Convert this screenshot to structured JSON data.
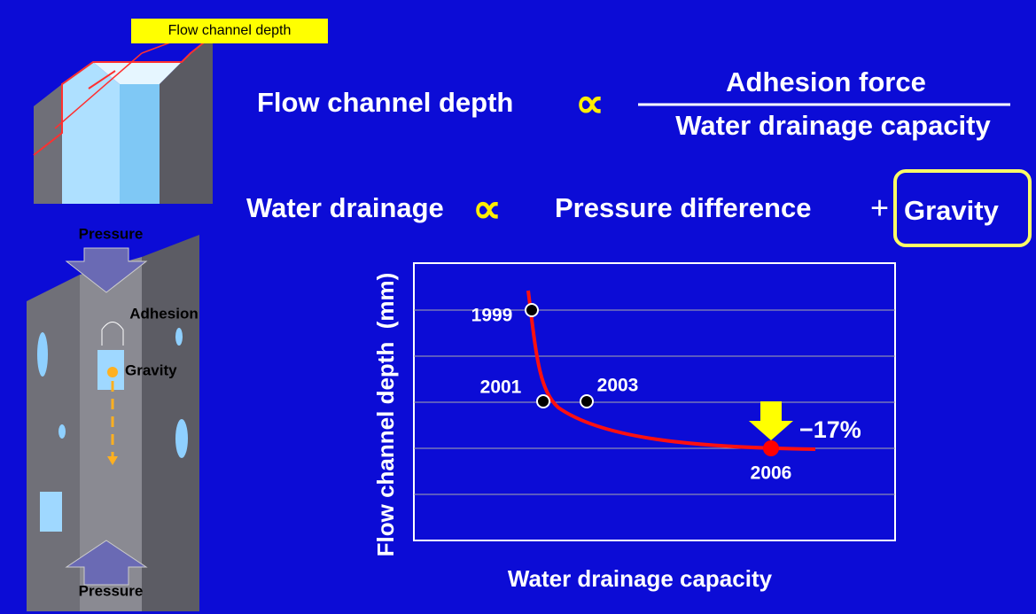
{
  "callout": "Flow channel depth",
  "diagram": {
    "pressure_top": "Pressure",
    "adhesion": "Adhesion",
    "gravity": "Gravity",
    "pressure_bottom": "Pressure"
  },
  "equation1": {
    "lhs": "Flow channel depth",
    "symbol": "∝",
    "numerator": "Adhesion force",
    "denominator": "Water drainage capacity"
  },
  "equation2": {
    "lhs": "Water drainage",
    "symbol": "∝",
    "term1": "Pressure difference",
    "plus": "+",
    "term2": "Gravity"
  },
  "chart": {
    "y_label": "Flow channel depth  (mm)",
    "x_label": "Water drainage capacity",
    "points": [
      {
        "label": "1999"
      },
      {
        "label": "2001"
      },
      {
        "label": "2003"
      },
      {
        "label": "2006"
      }
    ],
    "change": "−17%"
  }
}
